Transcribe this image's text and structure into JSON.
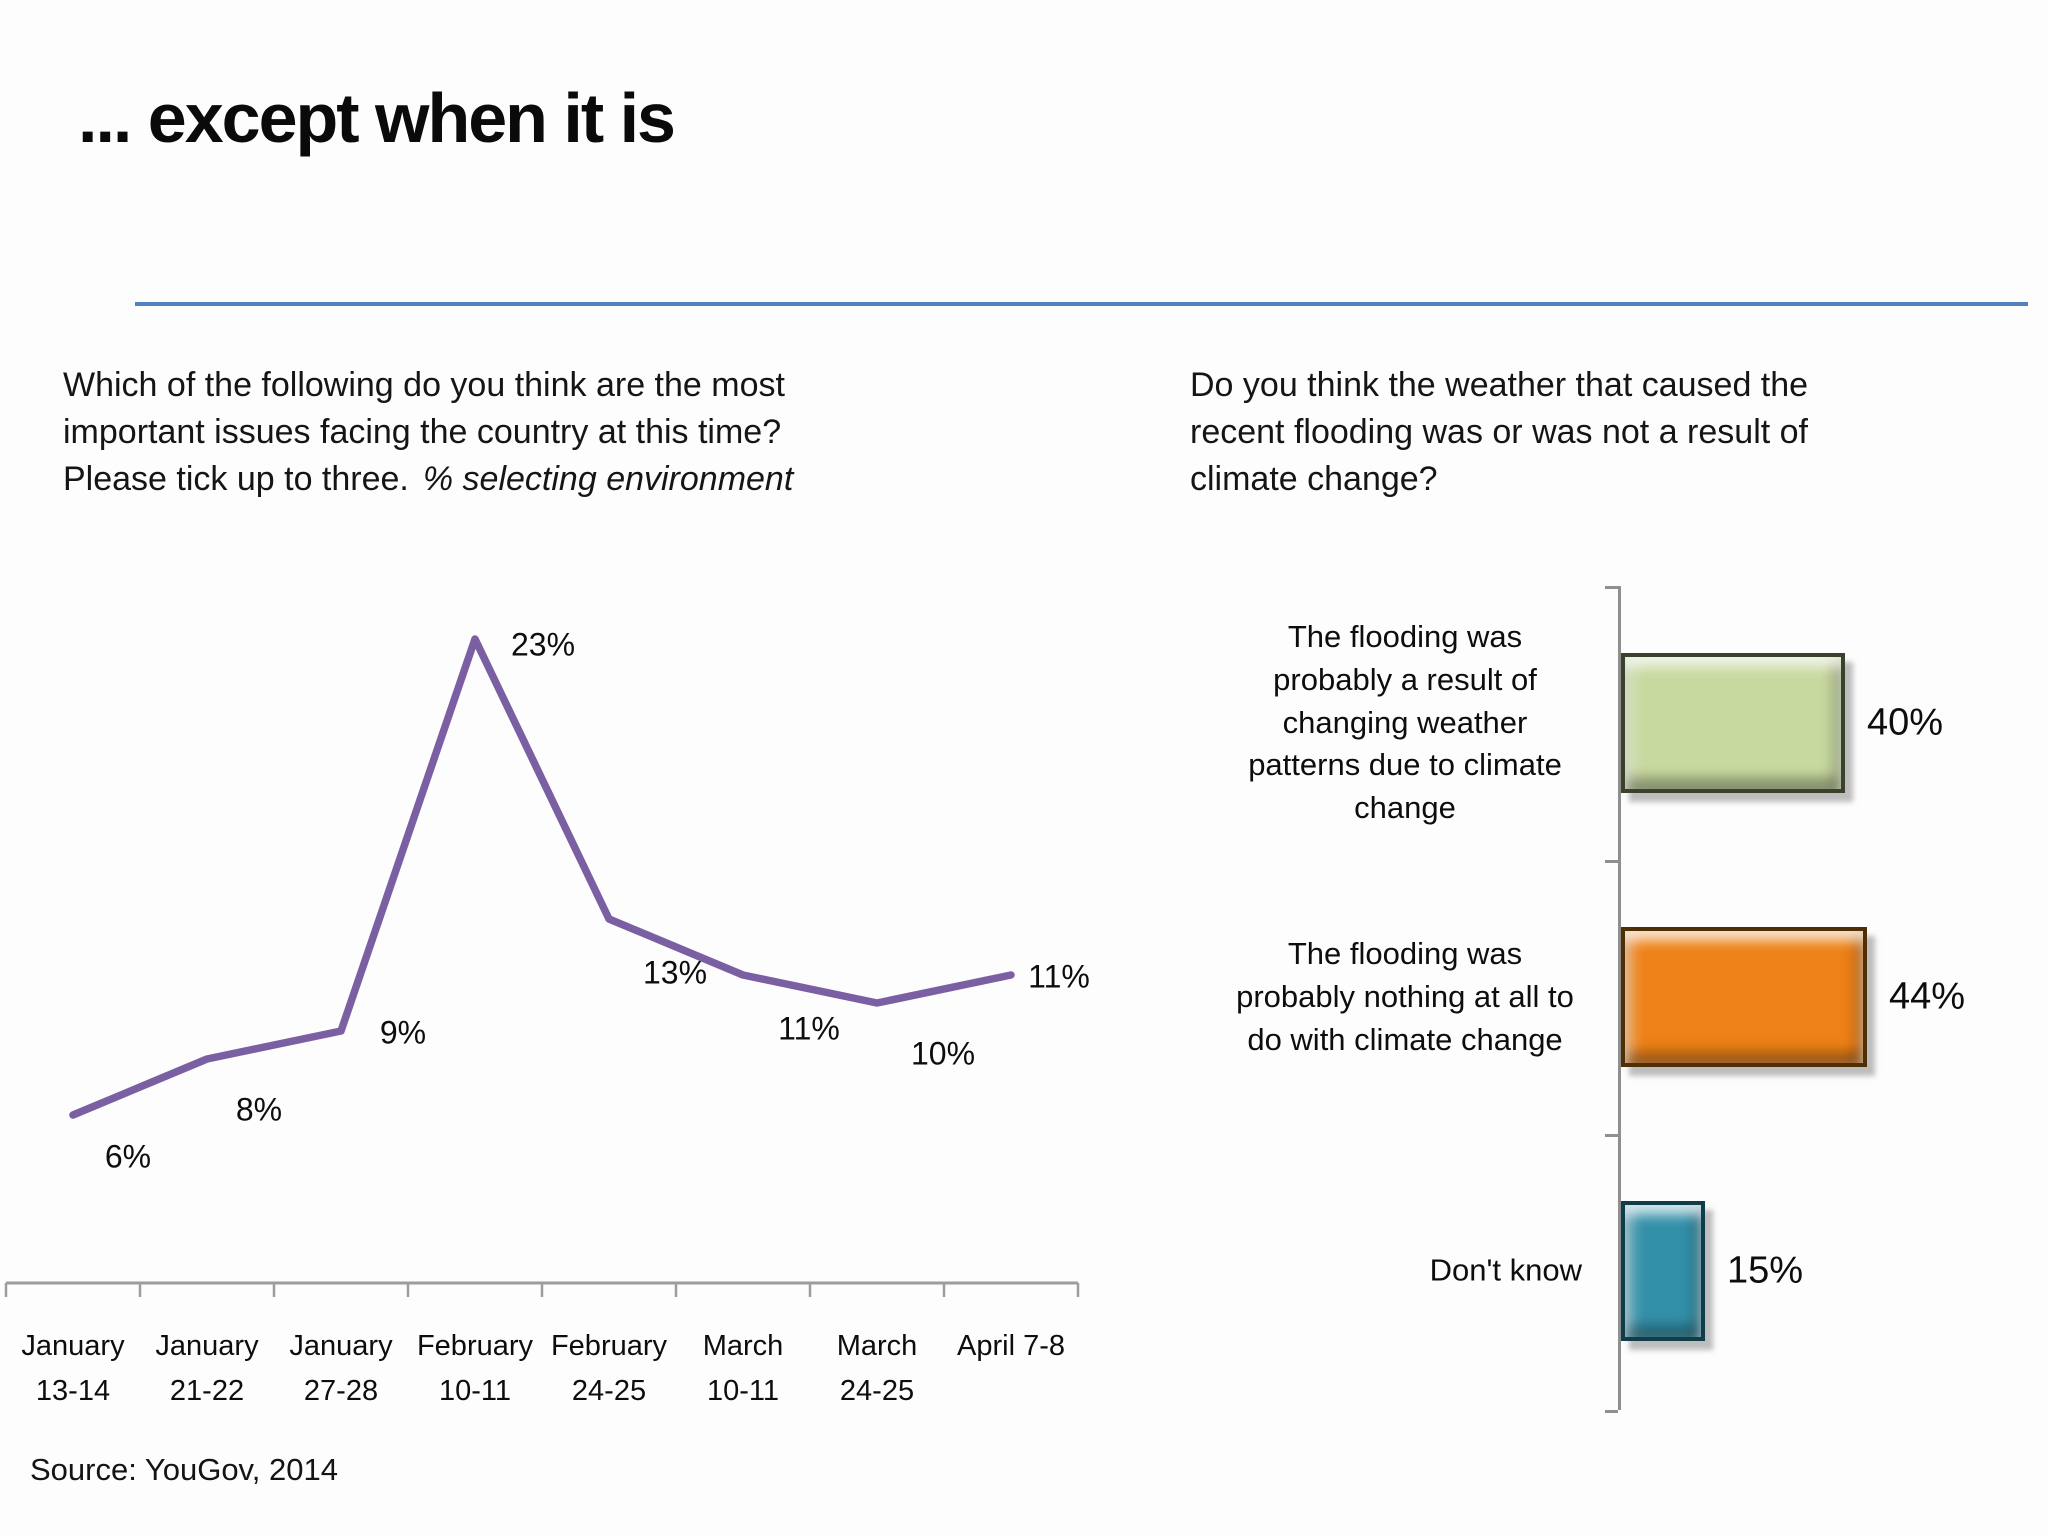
{
  "slide": {
    "title": "... except when it is",
    "source": "Source: YouGov, 2014",
    "accent_line_color": "#4f81bd"
  },
  "chart_data": [
    {
      "type": "line",
      "title_plain": "Which of the following do you think are the most\nimportant issues facing the country at this time?\nPlease tick up to three.",
      "title_italic": "% selecting environment",
      "categories": [
        "January\n13-14",
        "January\n21-22",
        "January\n27-28",
        "February\n10-11",
        "February\n24-25",
        "March\n10-11",
        "March\n24-25",
        "April 7-8"
      ],
      "values": [
        6,
        8,
        9,
        23,
        13,
        11,
        10,
        11
      ],
      "point_labels": [
        "6%",
        "8%",
        "9%",
        "23%",
        "13%",
        "11%",
        "10%",
        "11%"
      ],
      "line_color": "#7b5fa3",
      "axis_color": "#9d9d9d",
      "ylim": [
        0,
        25
      ],
      "grid": false,
      "legend": false
    },
    {
      "type": "bar",
      "orientation": "horizontal",
      "title": "Do you think the weather that caused the\nrecent flooding was or was not a result of\nclimate change?",
      "categories": [
        "The flooding was\nprobably a result of\nchanging weather\npatterns due to climate\nchange",
        "The flooding was\nprobably nothing at all to\ndo with climate change",
        "Don't know"
      ],
      "values": [
        40,
        44,
        15
      ],
      "value_labels": [
        "40%",
        "44%",
        "15%"
      ],
      "bar_colors": [
        "#c8d9a0",
        "#ee8117",
        "#3390a9"
      ],
      "bar_border_colors": [
        "#39422a",
        "#4f3006",
        "#0f3d49"
      ],
      "axis_color": "#8f8f8f",
      "xlim": [
        0,
        50
      ],
      "grid": false,
      "legend": false
    }
  ]
}
